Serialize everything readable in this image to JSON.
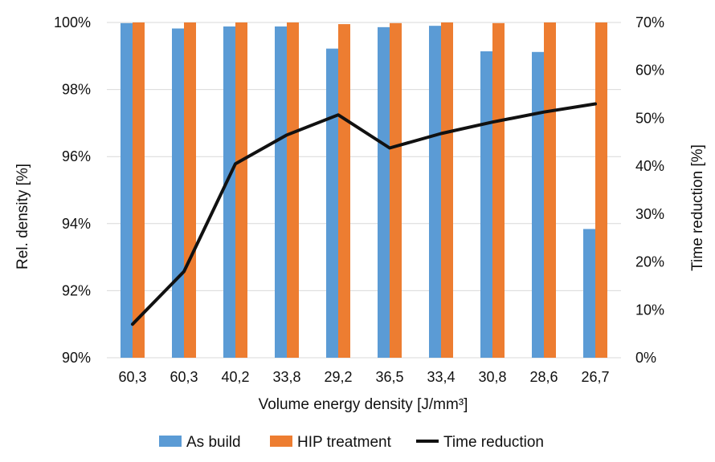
{
  "chart_data": {
    "type": "bar",
    "categories": [
      "60,3",
      "60,3",
      "40,2",
      "33,8",
      "29,2",
      "36,5",
      "33,4",
      "30,8",
      "28,6",
      "26,7"
    ],
    "series": [
      {
        "name": "As build",
        "type": "bar",
        "axis": "left",
        "color": "#5b9bd5",
        "values": [
          99.98,
          99.82,
          99.88,
          99.88,
          99.22,
          99.86,
          99.9,
          99.14,
          99.12,
          93.84
        ]
      },
      {
        "name": "HIP treatment",
        "type": "bar",
        "axis": "left",
        "color": "#ed7d31",
        "values": [
          100.0,
          100.0,
          100.0,
          100.0,
          99.95,
          99.98,
          100.0,
          99.98,
          100.0,
          100.0
        ]
      },
      {
        "name": "Time reduction",
        "type": "line",
        "axis": "right",
        "color": "#111111",
        "values": [
          7,
          18,
          40.5,
          46.5,
          50.7,
          43.8,
          46.8,
          49.2,
          51.3,
          53.0
        ]
      }
    ],
    "xlabel": "Volume energy density [J/mm³]",
    "ylabel": "Rel. density [%]",
    "y2label": "Time reduction [%]",
    "ylim": [
      90,
      100
    ],
    "y2lim": [
      0,
      70
    ],
    "yticks": [
      "90%",
      "92%",
      "94%",
      "96%",
      "98%",
      "100%"
    ],
    "y2ticks": [
      "0%",
      "10%",
      "20%",
      "30%",
      "40%",
      "50%",
      "60%",
      "70%"
    ],
    "grid": true,
    "legend_position": "bottom"
  }
}
